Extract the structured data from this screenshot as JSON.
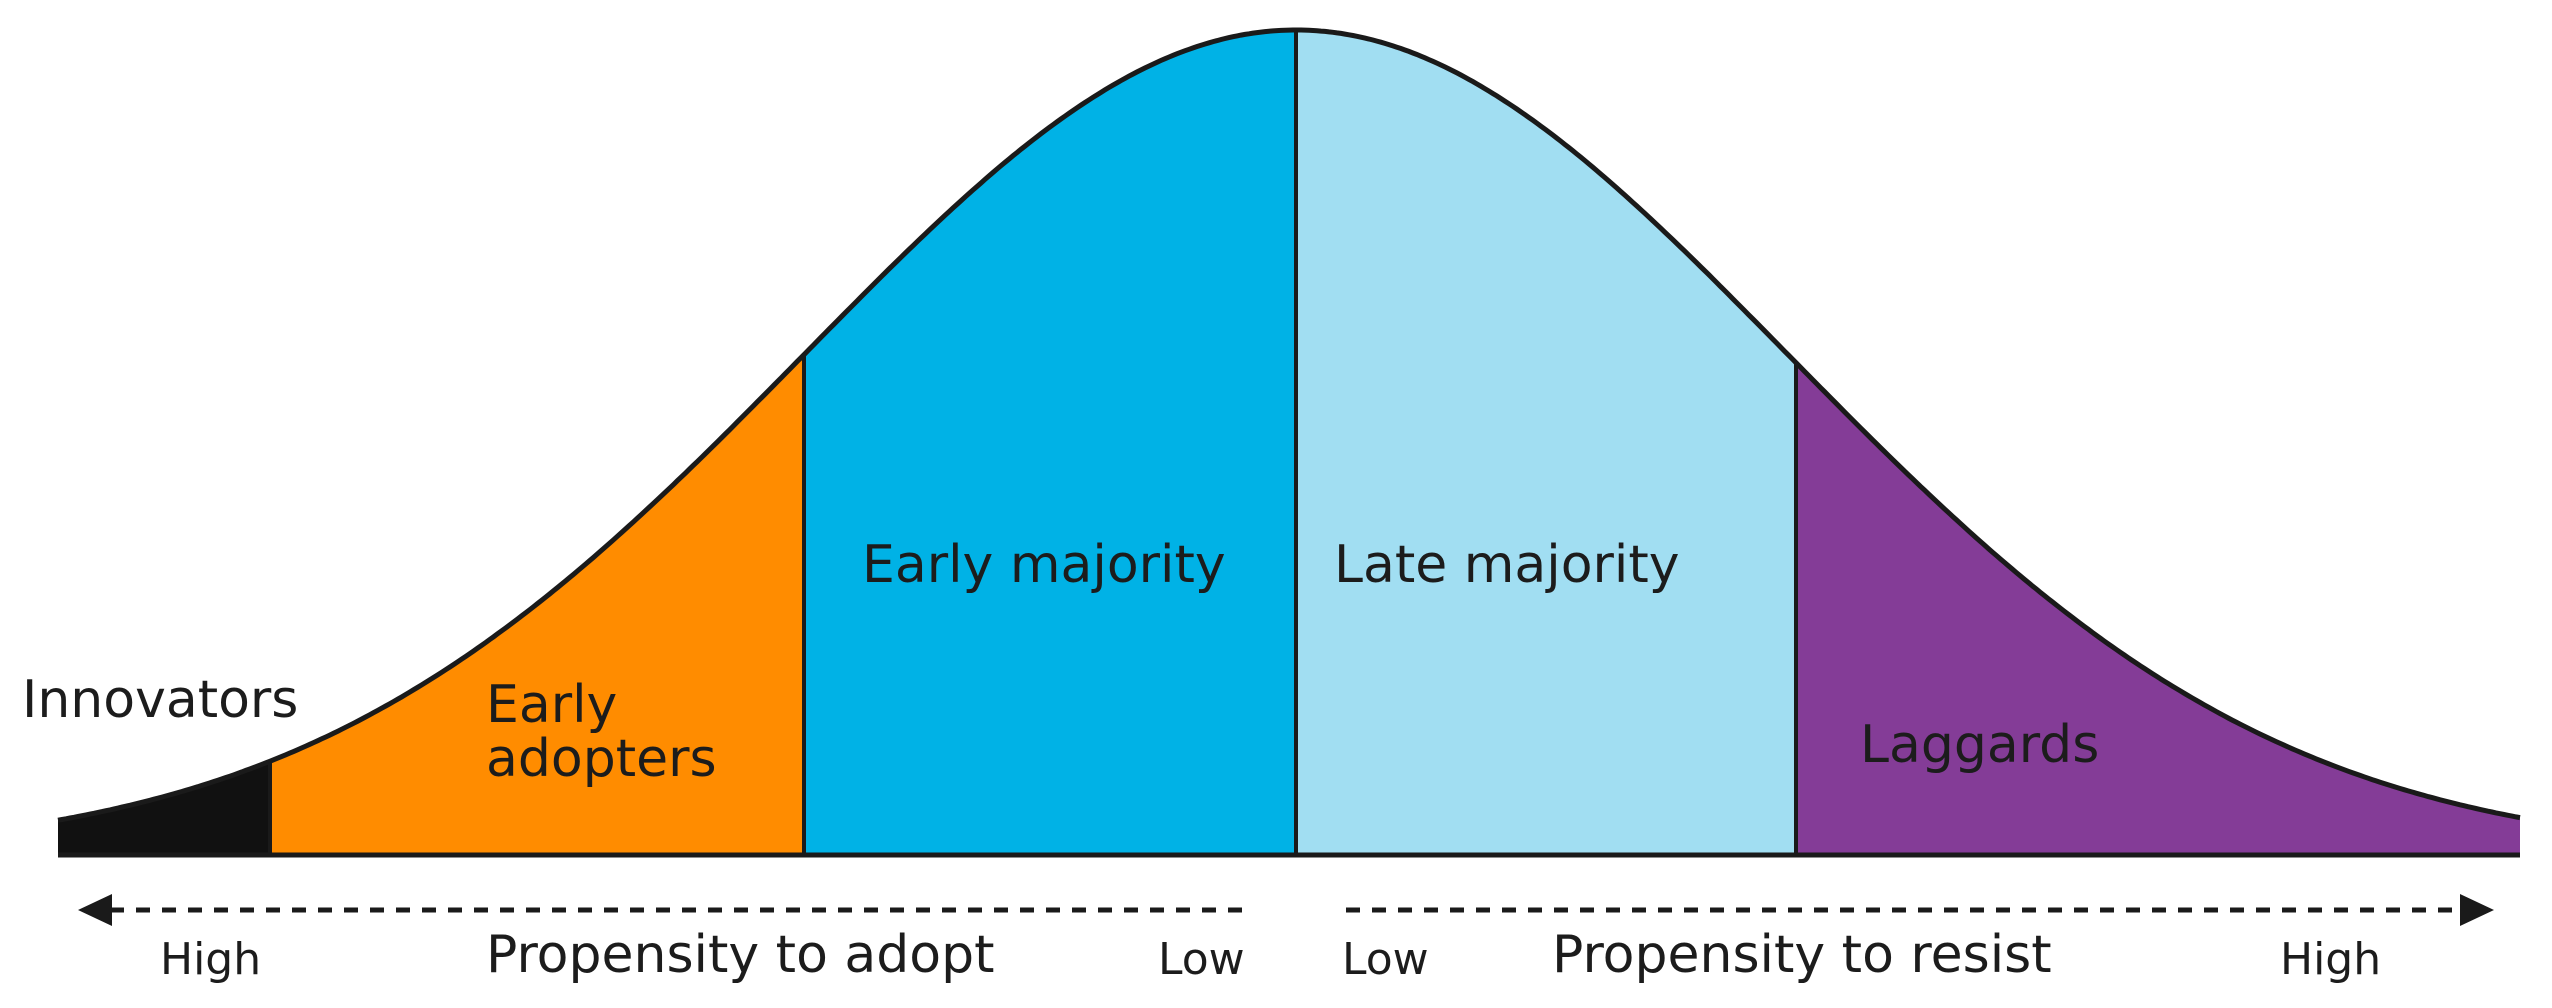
{
  "segments": [
    {
      "id": "innovators",
      "label": "Innovators",
      "color": "#111111"
    },
    {
      "id": "early-adopters",
      "label_line1": "Early",
      "label_line2": "adopters",
      "color": "#FF8C00"
    },
    {
      "id": "early-majority",
      "label": "Early majority",
      "color": "#00B2E6"
    },
    {
      "id": "late-majority",
      "label": "Late majority",
      "color": "#A1DEF2"
    },
    {
      "id": "laggards",
      "label": "Laggards",
      "color": "#843C97"
    }
  ],
  "axis": {
    "left": {
      "title": "Propensity to adopt",
      "start": "High",
      "end": "Low",
      "direction": "left"
    },
    "right": {
      "title": "Propensity to resist",
      "start": "Low",
      "end": "High",
      "direction": "right"
    }
  },
  "outline_color": "#1a1a1a"
}
